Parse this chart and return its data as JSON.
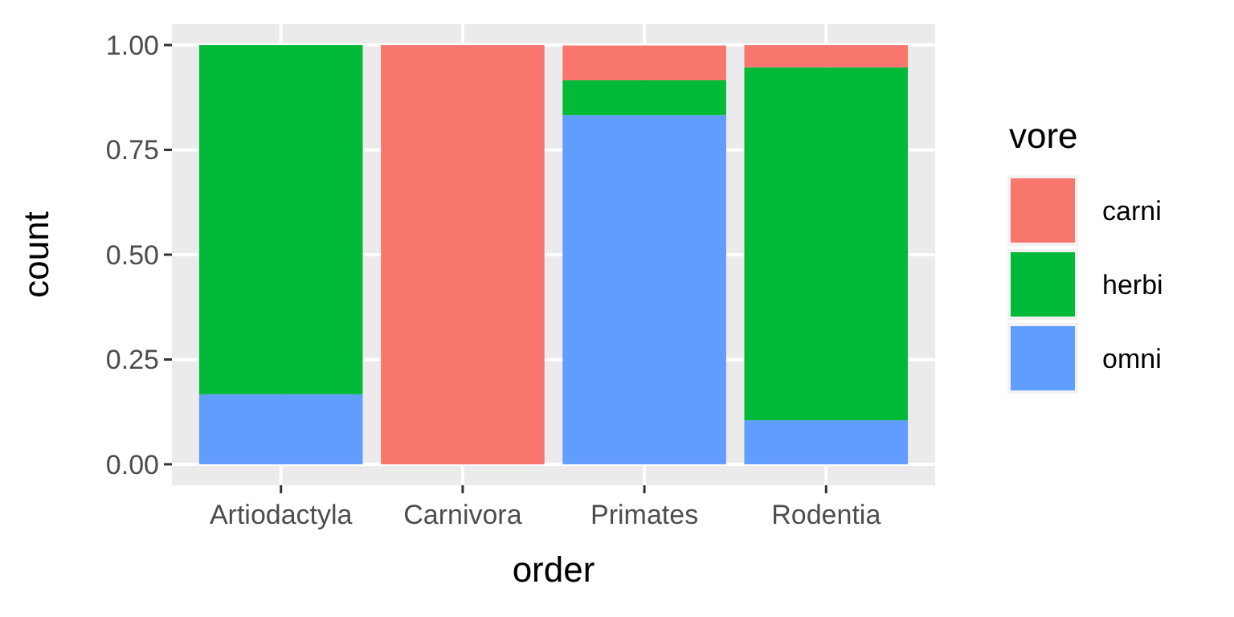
{
  "chart_data": {
    "type": "bar",
    "stacked": true,
    "xlabel": "order",
    "ylabel": "count",
    "legend_title": "vore",
    "categories": [
      "Artiodactyla",
      "Carnivora",
      "Primates",
      "Rodentia"
    ],
    "series": [
      {
        "name": "omni",
        "color": "#619cff",
        "values": [
          0.167,
          0,
          0.833,
          0.105
        ]
      },
      {
        "name": "herbi",
        "color": "#00ba38",
        "values": [
          0.833,
          0,
          0.083,
          0.842
        ]
      },
      {
        "name": "carni",
        "color": "#f8766d",
        "values": [
          0,
          1,
          0.083,
          0.053
        ]
      }
    ],
    "ylim": [
      -0.05,
      1.05
    ],
    "yticks": [
      {
        "value": 0,
        "label": "0.00"
      },
      {
        "value": 0.25,
        "label": "0.25"
      },
      {
        "value": 0.5,
        "label": "0.50"
      },
      {
        "value": 0.75,
        "label": "0.75"
      },
      {
        "value": 1,
        "label": "1.00"
      }
    ],
    "grid": true,
    "legend": "right"
  }
}
